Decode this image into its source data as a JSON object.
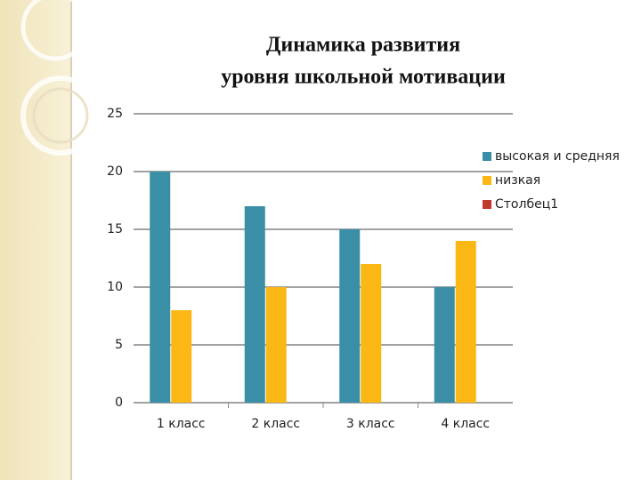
{
  "chart_data": {
    "type": "bar",
    "title": [
      "Динамика развития",
      "уровня школьной мотивации"
    ],
    "categories": [
      "1 класс",
      "2 класс",
      "3 класс",
      "4 класс"
    ],
    "series": [
      {
        "name": "высокая и средняя",
        "color": "#3a8fa6",
        "values": [
          20,
          17,
          15,
          10
        ]
      },
      {
        "name": "низкая",
        "color": "#fbb714",
        "values": [
          8,
          10,
          12,
          14
        ]
      },
      {
        "name": "Столбец1",
        "color": "#c0392b",
        "values": [
          null,
          null,
          null,
          null
        ]
      }
    ],
    "ylim": [
      0,
      25
    ],
    "yticks": [
      0,
      5,
      10,
      15,
      20,
      25
    ],
    "grid": true,
    "legend": "right"
  }
}
